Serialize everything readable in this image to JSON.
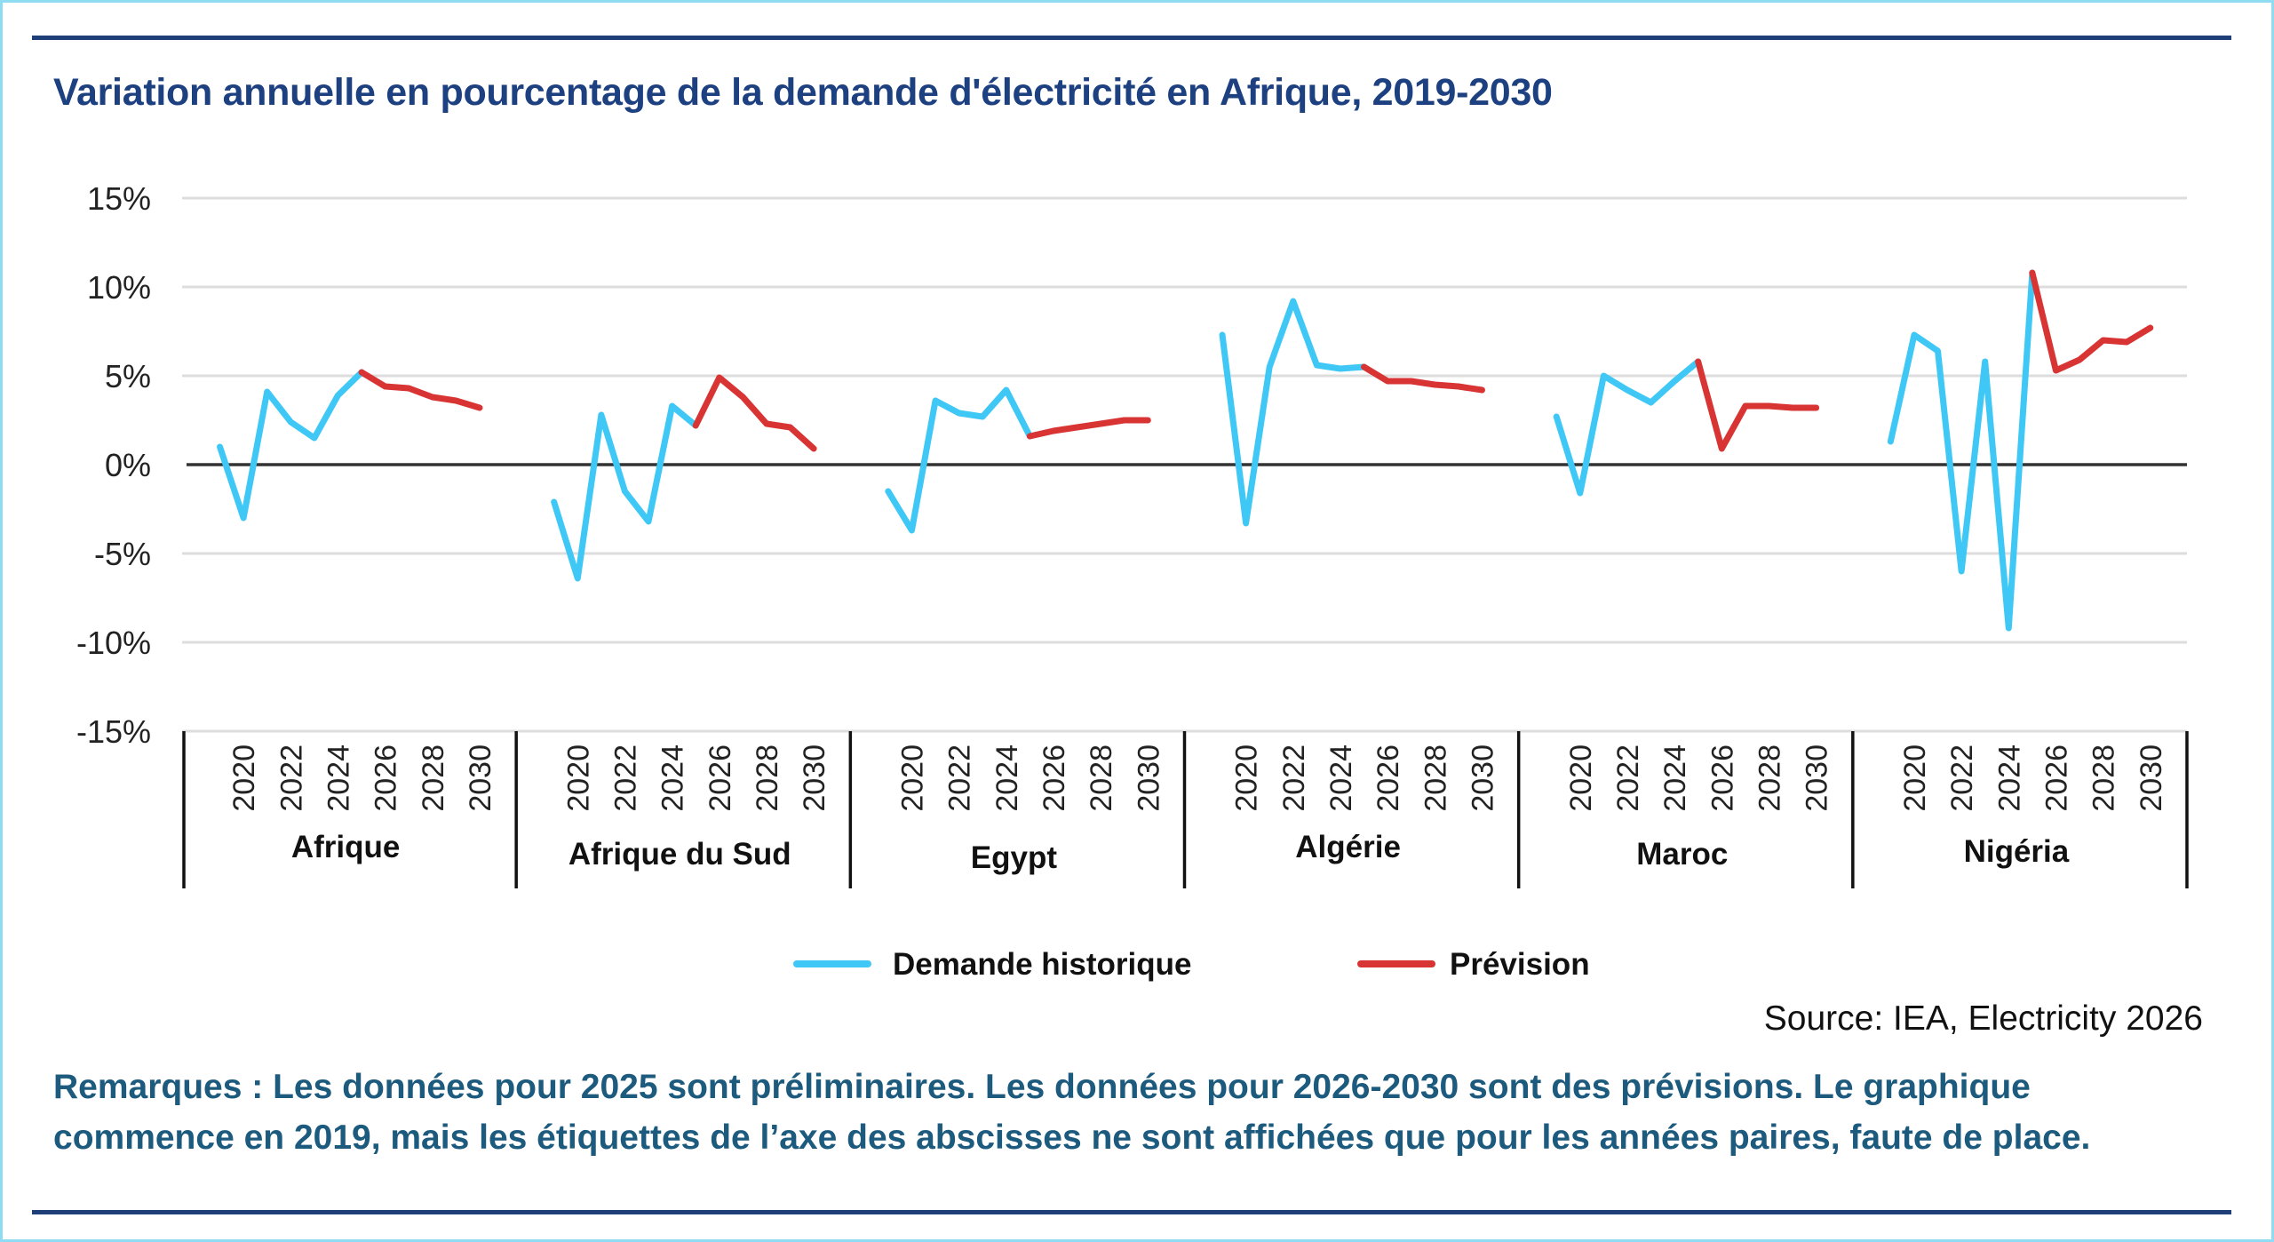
{
  "title": "Variation annuelle en pourcentage de la demande d'électricité en Afrique, 2019-2030",
  "source": "Source: IEA, Electricity 2026",
  "notes": "Remarques : Les données pour 2025 sont préliminaires. Les données pour 2026-2030 sont des prévisions. Le graphique commence en 2019, mais les étiquettes de l’axe des abscisses ne sont affichées que pour les années paires, faute de place.",
  "colors": {
    "historical": "#3fc8f5",
    "forecast": "#d93434",
    "title": "#1d4080",
    "notes": "#1c5a7e",
    "frame": "#8fdcf2",
    "rule": "#1f3f78"
  },
  "chart_data": {
    "type": "line",
    "title": "Variation annuelle en pourcentage de la demande d'électricité en Afrique, 2019-2030",
    "xlabel": "",
    "ylabel": "",
    "ylim": [
      -15,
      15
    ],
    "yticks": [
      15,
      10,
      5,
      0,
      -5,
      -10,
      -15
    ],
    "ytick_labels": [
      "15%",
      "10%",
      "5%",
      "0%",
      "-5%",
      "-10%",
      "-15%"
    ],
    "grid": true,
    "legend_position": "bottom-center",
    "years": [
      2019,
      2020,
      2021,
      2022,
      2023,
      2024,
      2025,
      2026,
      2027,
      2028,
      2029,
      2030
    ],
    "xtick_labels": [
      "2020",
      "2022",
      "2024",
      "2026",
      "2028",
      "2030"
    ],
    "forecast_start_year": 2025,
    "legend": [
      {
        "name": "Demande historique",
        "key": "historical"
      },
      {
        "name": "Prévision",
        "key": "forecast"
      }
    ],
    "groups": [
      {
        "name": "Afrique",
        "values": [
          1.0,
          -3.0,
          4.1,
          2.4,
          1.5,
          3.9,
          5.2,
          4.4,
          4.3,
          3.8,
          3.6,
          3.2
        ]
      },
      {
        "name": "Afrique du Sud",
        "values": [
          -2.1,
          -6.4,
          2.8,
          -1.5,
          -3.2,
          3.3,
          2.2,
          4.9,
          3.8,
          2.3,
          2.1,
          0.9
        ]
      },
      {
        "name": "Egypt",
        "values": [
          -1.5,
          -3.7,
          3.6,
          2.9,
          2.7,
          4.2,
          1.6,
          1.9,
          2.1,
          2.3,
          2.5,
          2.5
        ]
      },
      {
        "name": "Algérie",
        "values": [
          7.3,
          -3.3,
          5.5,
          9.2,
          5.6,
          5.4,
          5.5,
          4.7,
          4.7,
          4.5,
          4.4,
          4.2
        ]
      },
      {
        "name": "Maroc",
        "values": [
          2.7,
          -1.6,
          5.0,
          4.2,
          3.5,
          4.7,
          5.8,
          0.9,
          3.3,
          3.3,
          3.2,
          3.2
        ]
      },
      {
        "name": "Nigéria",
        "values": [
          1.3,
          7.3,
          6.4,
          -6.0,
          5.8,
          -9.2,
          10.8,
          5.3,
          5.9,
          7.0,
          6.9,
          7.7
        ]
      }
    ]
  }
}
